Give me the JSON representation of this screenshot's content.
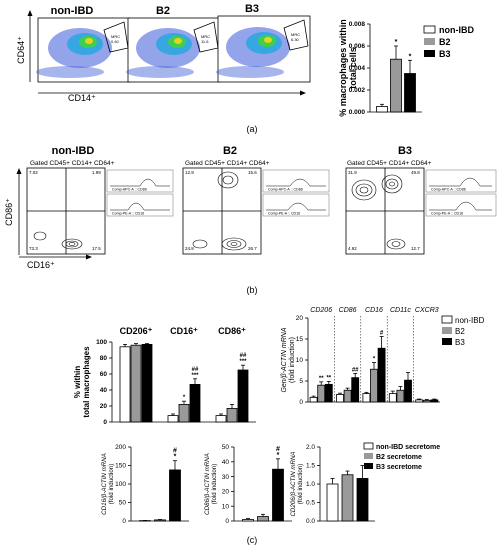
{
  "panel_a": {
    "groups": [
      "non-IBD",
      "B2",
      "B3"
    ],
    "y_axis": "CD64⁺",
    "x_axis": "CD14⁺",
    "gate_label": "MRC",
    "gate_values": [
      "0.40",
      "11.6",
      "6.30"
    ],
    "label": "(a)"
  },
  "panel_b": {
    "groups": [
      "non-IBD",
      "B2",
      "B3"
    ],
    "gate_text": "Gated CD45+ CD14+ CD64+",
    "y_axis": "CD86⁺",
    "x_axis": "CD16⁺",
    "quadrants": [
      [
        "7.02",
        "1.99",
        "73.3",
        "17.5"
      ],
      [
        "12.9",
        "15.6",
        "24.8",
        "26.7"
      ],
      [
        "31.9",
        "49.8",
        "4.92",
        "12.7"
      ]
    ],
    "histogram_labels": [
      "Comp-APC-A :: CD86",
      "Comp-PE-A :: CD16"
    ],
    "label": "(b)"
  },
  "panel_c_label": "(c)",
  "legend_a": [
    "non-IBD",
    "B2",
    "B3"
  ],
  "legend_c1": [
    "non-IBD",
    "B2",
    "B3"
  ],
  "legend_c2": [
    "non-IBD secretome",
    "B2 secretome",
    "B3 secretome"
  ],
  "colors": {
    "nonibd": "#ffffff",
    "b2": "#9a9a9a",
    "b3": "#000000"
  },
  "chart_data": [
    {
      "id": "a_bar",
      "type": "bar",
      "ylabel": "% macrophages within total cells",
      "ylim": [
        0,
        0.008
      ],
      "ticks": [
        "0.000",
        "0.002",
        "0.004",
        "0.006",
        "0.008"
      ],
      "categories": [
        "non-IBD",
        "B2",
        "B3"
      ],
      "values": [
        0.0005,
        0.0048,
        0.0035
      ],
      "errors": [
        0.0002,
        0.0012,
        0.0012
      ],
      "sig": [
        "",
        "*",
        "*"
      ]
    },
    {
      "id": "c_pct",
      "type": "bar",
      "ylabel": "% within total macrophages",
      "ylim": [
        0,
        100
      ],
      "ticks": [
        "0",
        "20",
        "40",
        "60",
        "80",
        "100"
      ],
      "group_labels": [
        "CD206⁺",
        "CD16⁺",
        "CD86⁺"
      ],
      "series": [
        {
          "name": "non-IBD",
          "values": [
            94,
            8,
            8
          ]
        },
        {
          "name": "B2",
          "values": [
            96,
            22,
            17
          ]
        },
        {
          "name": "B3",
          "values": [
            97,
            47,
            65
          ]
        }
      ],
      "errors": [
        [
          3,
          2,
          2
        ],
        [
          2,
          4,
          5
        ],
        [
          1,
          7,
          6
        ]
      ],
      "sig": [
        [
          "",
          "",
          ""
        ],
        [
          "",
          "*",
          ""
        ],
        [
          "",
          "##\n***",
          "##\n***"
        ]
      ]
    },
    {
      "id": "c_genes",
      "type": "bar",
      "ylabel": "Gen/β-ACTIN mRNA (fold induction)",
      "ylim": [
        0,
        20
      ],
      "ticks": [
        "0",
        "5",
        "10",
        "15",
        "20"
      ],
      "group_labels": [
        "CD206",
        "CD86",
        "CD16",
        "CD11c",
        "CXCR3"
      ],
      "series": [
        {
          "name": "non-IBD",
          "values": [
            1.1,
            1.8,
            2.0,
            2.0,
            0.5
          ]
        },
        {
          "name": "B2",
          "values": [
            4.0,
            2.8,
            7.8,
            2.8,
            0.4
          ]
        },
        {
          "name": "B3",
          "values": [
            4.2,
            5.8,
            12.8,
            5.2,
            0.5
          ]
        }
      ],
      "errors": [
        [
          0.3,
          0.3,
          0.3,
          0.6,
          0.2
        ],
        [
          0.8,
          0.5,
          1.6,
          0.9,
          0.2
        ],
        [
          0.7,
          1.0,
          2.8,
          1.8,
          0.2
        ]
      ],
      "sig": [
        [
          "",
          "",
          "",
          "",
          ""
        ],
        [
          "**",
          "",
          "*",
          "",
          ""
        ],
        [
          "**",
          "##",
          "#",
          "",
          ""
        ]
      ]
    },
    {
      "id": "c_cd16",
      "type": "bar",
      "ylabel": "CD16/β-ACTIN mRNA (fold induction)",
      "ylim": [
        0,
        200
      ],
      "ticks": [
        "0",
        "50",
        "100",
        "150",
        "200"
      ],
      "values": [
        1,
        3,
        138
      ],
      "errors": [
        0.5,
        1,
        25
      ],
      "sig": [
        "",
        "",
        "#\n*"
      ]
    },
    {
      "id": "c_cd86",
      "type": "bar",
      "ylabel": "CD86/β-ACTIN mRNA (fold induction)",
      "ylim": [
        0,
        50
      ],
      "ticks": [
        "0",
        "10",
        "20",
        "30",
        "40",
        "50"
      ],
      "values": [
        1,
        3,
        35
      ],
      "errors": [
        0.7,
        1.5,
        7
      ],
      "sig": [
        "",
        "",
        "#\n*"
      ]
    },
    {
      "id": "c_cd206",
      "type": "bar",
      "ylabel": "CD206/β-ACTIN mRNA (fold induction)",
      "ylim": [
        0,
        2.0
      ],
      "ticks": [
        "0.0",
        "0.5",
        "1.0",
        "1.5",
        "2.0"
      ],
      "values": [
        1.0,
        1.25,
        1.15
      ],
      "errors": [
        0.15,
        0.1,
        0.35
      ],
      "sig": [
        "",
        "",
        ""
      ]
    }
  ]
}
